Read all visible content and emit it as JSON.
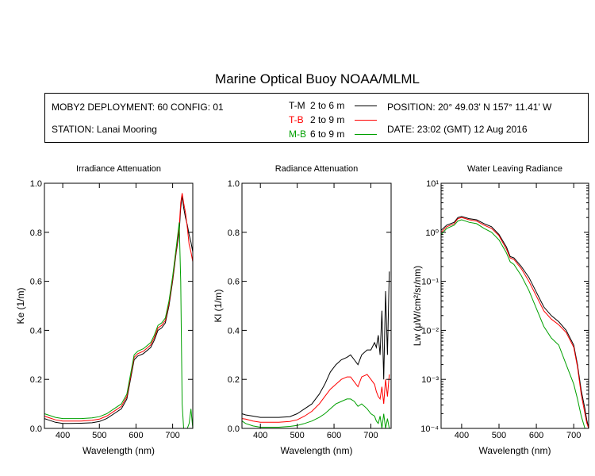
{
  "title": "Marine Optical Buoy NOAA/MLML",
  "info": {
    "deployment": "MOBY2 DEPLOYMENT: 60 CONFIG: 01",
    "station": "STATION: Lanai Mooring",
    "position": "POSITION: 20° 49.03' N   157° 11.41' W",
    "date": "DATE: 23:02 (GMT) 12 Aug 2016",
    "legend": [
      {
        "code": "T-M",
        "range": "2 to 6  m",
        "color": "#000000"
      },
      {
        "code": "T-B",
        "range": "2 to 9  m",
        "color": "#ff0000"
      },
      {
        "code": "M-B",
        "range": "6 to 9  m",
        "color": "#00a000"
      }
    ]
  },
  "chart_data": [
    {
      "type": "line",
      "title": "Irradiance Attenuation",
      "xlabel": "Wavelength (nm)",
      "ylabel": "Ke  (1/m)",
      "xlim": [
        350,
        755
      ],
      "ylim": [
        0,
        1.0
      ],
      "xticks": [
        "400",
        "500",
        "600",
        "700"
      ],
      "xtick_values": [
        400,
        500,
        600,
        700
      ],
      "yticks": [
        "0.0",
        "0.2",
        "0.4",
        "0.6",
        "0.8",
        "1.0"
      ],
      "ytick_values": [
        0,
        0.2,
        0.4,
        0.6,
        0.8,
        1.0
      ],
      "x": [
        350,
        360,
        380,
        400,
        420,
        450,
        480,
        500,
        520,
        540,
        560,
        575,
        585,
        595,
        605,
        620,
        640,
        650,
        660,
        670,
        680,
        690,
        700,
        710,
        718,
        722,
        726,
        730,
        735,
        740,
        745,
        750,
        755
      ],
      "series": [
        {
          "name": "T-M",
          "color": "#000000",
          "values": [
            0.04,
            0.035,
            0.025,
            0.02,
            0.02,
            0.021,
            0.023,
            0.028,
            0.04,
            0.06,
            0.08,
            0.12,
            0.2,
            0.28,
            0.295,
            0.305,
            0.33,
            0.36,
            0.4,
            0.41,
            0.43,
            0.5,
            0.6,
            0.72,
            0.8,
            0.9,
            0.95,
            0.9,
            0.86,
            0.83,
            0.79,
            0.76,
            0.72
          ]
        },
        {
          "name": "T-B",
          "color": "#ff0000",
          "values": [
            0.05,
            0.045,
            0.035,
            0.03,
            0.03,
            0.03,
            0.033,
            0.038,
            0.05,
            0.07,
            0.09,
            0.13,
            0.21,
            0.29,
            0.305,
            0.315,
            0.34,
            0.37,
            0.41,
            0.42,
            0.44,
            0.51,
            0.61,
            0.73,
            0.82,
            0.92,
            0.96,
            0.92,
            0.88,
            0.82,
            0.75,
            0.72,
            0.68
          ]
        },
        {
          "name": "M-B",
          "color": "#00a000",
          "values": [
            0.06,
            0.055,
            0.045,
            0.04,
            0.04,
            0.04,
            0.043,
            0.048,
            0.06,
            0.08,
            0.1,
            0.14,
            0.22,
            0.3,
            0.315,
            0.325,
            0.35,
            0.38,
            0.42,
            0.43,
            0.45,
            0.52,
            0.62,
            0.74,
            0.84,
            0.6,
            0.1,
            0.0,
            0.0,
            0.0,
            0.02,
            0.08,
            0.0
          ]
        }
      ]
    },
    {
      "type": "line",
      "title": "Radiance Attenuation",
      "xlabel": "Wavelength (nm)",
      "ylabel": "Kl  (1/m)",
      "xlim": [
        350,
        755
      ],
      "ylim": [
        0,
        1.0
      ],
      "xticks": [
        "400",
        "500",
        "600",
        "700"
      ],
      "xtick_values": [
        400,
        500,
        600,
        700
      ],
      "yticks": [
        "0.0",
        "0.2",
        "0.4",
        "0.6",
        "0.8",
        "1.0"
      ],
      "ytick_values": [
        0,
        0.2,
        0.4,
        0.6,
        0.8,
        1.0
      ],
      "x": [
        350,
        360,
        380,
        400,
        420,
        450,
        480,
        500,
        520,
        540,
        560,
        575,
        590,
        605,
        620,
        635,
        645,
        655,
        665,
        675,
        690,
        700,
        710,
        715,
        720,
        725,
        730,
        735,
        740,
        745,
        750
      ],
      "series": [
        {
          "name": "T-M",
          "color": "#000000",
          "values": [
            0.06,
            0.055,
            0.05,
            0.045,
            0.045,
            0.045,
            0.048,
            0.06,
            0.08,
            0.1,
            0.14,
            0.18,
            0.23,
            0.26,
            0.28,
            0.29,
            0.3,
            0.28,
            0.26,
            0.3,
            0.32,
            0.32,
            0.35,
            0.33,
            0.38,
            0.3,
            0.48,
            0.2,
            0.56,
            0.3,
            0.64
          ]
        },
        {
          "name": "T-B",
          "color": "#ff0000",
          "values": [
            0.04,
            0.038,
            0.03,
            0.025,
            0.025,
            0.025,
            0.028,
            0.035,
            0.05,
            0.07,
            0.1,
            0.13,
            0.16,
            0.18,
            0.2,
            0.21,
            0.21,
            0.19,
            0.17,
            0.21,
            0.22,
            0.2,
            0.18,
            0.15,
            0.13,
            0.12,
            0.17,
            0.1,
            0.2,
            0.13,
            0.22
          ]
        },
        {
          "name": "M-B",
          "color": "#00a000",
          "values": [
            0.03,
            0.02,
            0.01,
            0.005,
            0.005,
            0.005,
            0.008,
            0.012,
            0.02,
            0.03,
            0.045,
            0.06,
            0.08,
            0.1,
            0.11,
            0.12,
            0.12,
            0.11,
            0.09,
            0.1,
            0.08,
            0.06,
            0.05,
            0.03,
            0.02,
            0.05,
            0.0,
            0.06,
            0.0,
            0.04,
            0.0
          ]
        }
      ]
    },
    {
      "type": "line",
      "title": "Water Leaving Radiance",
      "xlabel": "Wavelength (nm)",
      "ylabel": "Lw  (μW/cm²/sr/nm)",
      "yscale": "log",
      "xlim": [
        345,
        740
      ],
      "ylim": [
        0.0001,
        10
      ],
      "xticks": [
        "400",
        "500",
        "600",
        "700"
      ],
      "xtick_values": [
        400,
        500,
        600,
        700
      ],
      "yticks": [
        "10⁻⁴",
        "10⁻³",
        "10⁻²",
        "10⁻¹",
        "10⁰",
        "10¹"
      ],
      "ytick_values": [
        0.0001,
        0.001,
        0.01,
        0.1,
        1,
        10
      ],
      "x": [
        345,
        360,
        380,
        390,
        400,
        420,
        440,
        460,
        480,
        500,
        520,
        530,
        540,
        560,
        580,
        600,
        620,
        640,
        660,
        680,
        700,
        710,
        720,
        730,
        735,
        740
      ],
      "series": [
        {
          "name": "T-M",
          "color": "#000000",
          "values": [
            1.1,
            1.4,
            1.6,
            2.0,
            2.1,
            1.9,
            1.8,
            1.5,
            1.3,
            0.9,
            0.5,
            0.32,
            0.3,
            0.2,
            0.12,
            0.06,
            0.03,
            0.02,
            0.015,
            0.01,
            0.005,
            0.002,
            0.0006,
            0.00025,
            0.00015,
            0.0001
          ]
        },
        {
          "name": "T-B",
          "color": "#ff0000",
          "values": [
            1.0,
            1.3,
            1.5,
            1.9,
            2.0,
            1.8,
            1.7,
            1.4,
            1.2,
            0.85,
            0.45,
            0.3,
            0.28,
            0.18,
            0.1,
            0.05,
            0.025,
            0.017,
            0.013,
            0.009,
            0.0045,
            0.0018,
            0.0005,
            0.0002,
            0.00013,
            0.0001
          ]
        },
        {
          "name": "M-B",
          "color": "#00a000",
          "values": [
            0.9,
            1.2,
            1.4,
            1.7,
            1.8,
            1.6,
            1.5,
            1.2,
            1.0,
            0.7,
            0.38,
            0.25,
            0.22,
            0.13,
            0.065,
            0.028,
            0.012,
            0.007,
            0.005,
            0.002,
            0.0008,
            0.0004,
            0.00018,
            0.0001,
            0.0001,
            0.0001
          ]
        }
      ]
    }
  ]
}
